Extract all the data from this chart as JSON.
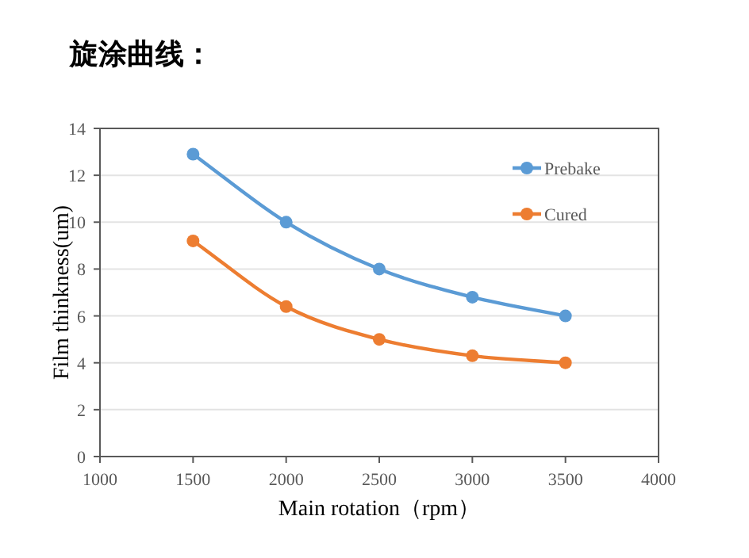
{
  "chart_data": {
    "type": "line",
    "title": "旋涂曲线：",
    "xlabel": "Main rotation（rpm）",
    "ylabel": "Film thinkness(um)",
    "x": [
      1500,
      2000,
      2500,
      3000,
      3500
    ],
    "series": [
      {
        "name": "Prebake",
        "color": "#5b9bd5",
        "values": [
          12.9,
          10,
          8,
          6.8,
          6
        ]
      },
      {
        "name": "Cured",
        "color": "#ed7d31",
        "values": [
          9.2,
          6.4,
          5,
          4.3,
          4
        ]
      }
    ],
    "xlim": [
      1000,
      4000
    ],
    "xticks": [
      1000,
      1500,
      2000,
      2500,
      3000,
      3500,
      4000
    ],
    "ylim": [
      0,
      14
    ],
    "yticks": [
      0,
      2,
      4,
      6,
      8,
      10,
      12,
      14
    ],
    "grid": "y",
    "legend": "top right",
    "marker": "circle",
    "line_style": "solid"
  }
}
